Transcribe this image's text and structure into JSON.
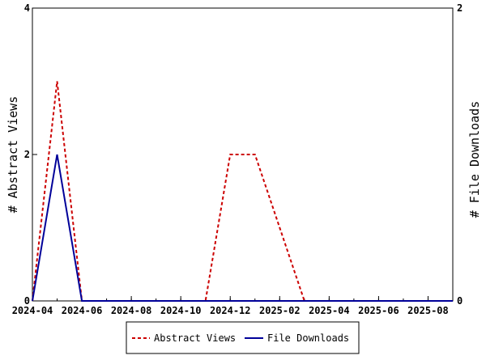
{
  "chart_data": {
    "type": "line",
    "x_ticks": [
      "2024-04",
      "2024-06",
      "2024-08",
      "2024-10",
      "2024-12",
      "2025-02",
      "2025-04",
      "2025-06",
      "2025-08"
    ],
    "x_range": [
      "2024-04",
      "2025-09"
    ],
    "y_left": {
      "label": "# Abstract Views",
      "range": [
        0,
        4
      ],
      "ticks": [
        "0",
        "2",
        "4"
      ]
    },
    "y_right": {
      "label": "# File Downloads",
      "range": [
        0,
        2
      ],
      "ticks": [
        "0",
        "2"
      ]
    },
    "series": [
      {
        "name": "Abstract Views",
        "axis": "left",
        "color": "#cc0000",
        "style": "dashed",
        "x": [
          "2024-04",
          "2024-05",
          "2024-06",
          "2024-07",
          "2024-08",
          "2024-09",
          "2024-10",
          "2024-11",
          "2024-12",
          "2025-01",
          "2025-02",
          "2025-03",
          "2025-04",
          "2025-05",
          "2025-06",
          "2025-07",
          "2025-08",
          "2025-09"
        ],
        "values": [
          0,
          3,
          0,
          0,
          0,
          0,
          0,
          0,
          2,
          2,
          1,
          0,
          0,
          0,
          0,
          0,
          0,
          0
        ]
      },
      {
        "name": "File Downloads",
        "axis": "right",
        "color": "#000099",
        "style": "solid",
        "x": [
          "2024-04",
          "2024-05",
          "2024-06",
          "2024-07",
          "2024-08",
          "2024-09",
          "2024-10",
          "2024-11",
          "2024-12",
          "2025-01",
          "2025-02",
          "2025-03",
          "2025-04",
          "2025-05",
          "2025-06",
          "2025-07",
          "2025-08",
          "2025-09"
        ],
        "values": [
          0,
          1,
          0,
          0,
          0,
          0,
          0,
          0,
          0,
          0,
          0,
          0,
          0,
          0,
          0,
          0,
          0,
          0
        ]
      }
    ],
    "legend": {
      "position": "bottom-center",
      "entries": [
        "Abstract Views",
        "File Downloads"
      ]
    },
    "grid": false
  }
}
